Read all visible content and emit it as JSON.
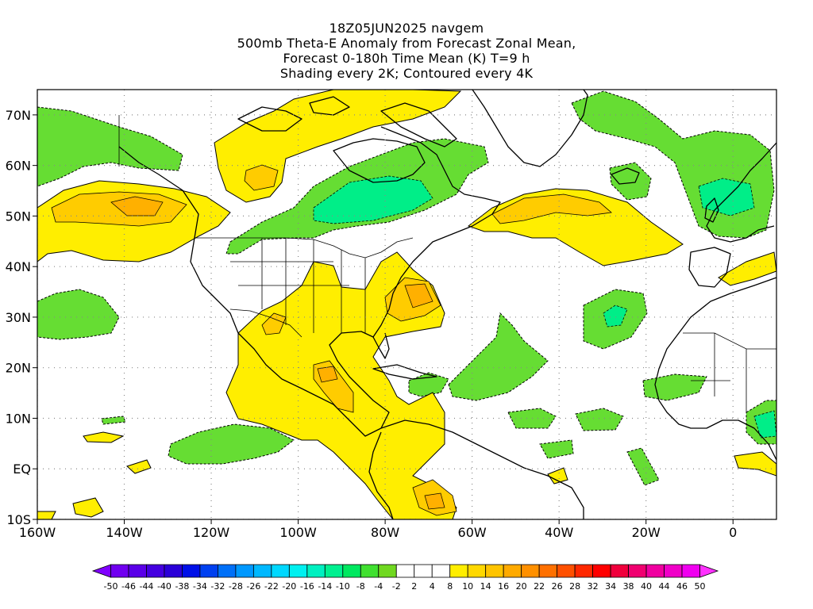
{
  "titles": [
    "18Z05JUN2025 navgem",
    "500mb Theta-E Anomaly from Forecast Zonal Mean,",
    "Forecast 0-180h Time Mean (K) T=9 h",
    "Shading every 2K; Contoured every 4K"
  ],
  "map": {
    "lon_range": [
      -160,
      10
    ],
    "lat_range": [
      -10,
      75
    ],
    "lon_ticks": [
      {
        "lon": -160,
        "label": "160W"
      },
      {
        "lon": -140,
        "label": "140W"
      },
      {
        "lon": -120,
        "label": "120W"
      },
      {
        "lon": -100,
        "label": "100W"
      },
      {
        "lon": -80,
        "label": "80W"
      },
      {
        "lon": -60,
        "label": "60W"
      },
      {
        "lon": -40,
        "label": "40W"
      },
      {
        "lon": -20,
        "label": "20W"
      },
      {
        "lon": 0,
        "label": "0"
      }
    ],
    "lat_ticks": [
      {
        "lat": 70,
        "label": "70N"
      },
      {
        "lat": 60,
        "label": "60N"
      },
      {
        "lat": 50,
        "label": "50N"
      },
      {
        "lat": 40,
        "label": "40N"
      },
      {
        "lat": 30,
        "label": "30N"
      },
      {
        "lat": 20,
        "label": "20N"
      },
      {
        "lat": 10,
        "label": "10N"
      },
      {
        "lat": 0,
        "label": "EQ"
      },
      {
        "lat": -10,
        "label": "10S"
      }
    ],
    "grid": "dotted",
    "colors": {
      "ocean_background": "#ffffff",
      "coast": "#000000",
      "neg_2_4": "#66dd33",
      "neg_8_10": "#00ee88",
      "pos_4_8": "#ffee00",
      "pos_8_10": "#ffcc00",
      "pos_10_14": "#ffb000"
    }
  },
  "colorbar": {
    "labels": [
      "-50",
      "-46",
      "-44",
      "-40",
      "-38",
      "-34",
      "-32",
      "-28",
      "-26",
      "-22",
      "-20",
      "-16",
      "-14",
      "-10",
      "-8",
      "-4",
      "-2",
      "2",
      "4",
      "8",
      "10",
      "14",
      "16",
      "20",
      "22",
      "26",
      "28",
      "32",
      "34",
      "38",
      "40",
      "44",
      "46",
      "50"
    ],
    "colors": [
      "#8000ff",
      "#7000f0",
      "#5a00e8",
      "#4400e0",
      "#2a00d8",
      "#0010e8",
      "#0040f0",
      "#0070f8",
      "#0098ff",
      "#00b8ff",
      "#00d8ff",
      "#00f0f0",
      "#00f0c0",
      "#00f090",
      "#00e860",
      "#40e030",
      "#70d820",
      "#ffffff",
      "#ffffff",
      "#ffffff",
      "#ffee00",
      "#ffd800",
      "#ffc400",
      "#ffaa00",
      "#ff9000",
      "#ff7000",
      "#ff5000",
      "#ff2800",
      "#ff0000",
      "#f0003c",
      "#f00070",
      "#f000a0",
      "#f000c8",
      "#f000f0",
      "#ff30ff"
    ]
  }
}
